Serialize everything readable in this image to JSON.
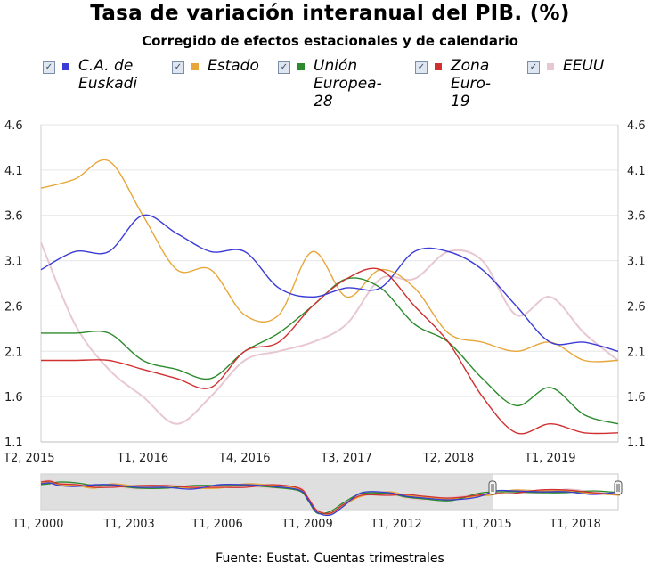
{
  "chart_data": {
    "type": "line",
    "title": "Tasa de variación interanual del PIB. (%)",
    "subtitle": "Corregido de efectos estacionales y de calendario",
    "ylim": [
      1.1,
      4.6
    ],
    "yticks": [
      "4.6",
      "4.1",
      "3.6",
      "3.1",
      "2.6",
      "2.1",
      "1.6",
      "1.1"
    ],
    "ytick_values": [
      4.6,
      4.1,
      3.6,
      3.1,
      2.6,
      2.1,
      1.6,
      1.1
    ],
    "xticks": [
      "T2, 2015",
      "T1, 2016",
      "T4, 2016",
      "T3, 2017",
      "T2, 2018",
      "T1, 2019"
    ],
    "xtick_positions": [
      0,
      3,
      6,
      9,
      12,
      15
    ],
    "x": [
      "T2 2015",
      "T3 2015",
      "T4 2015",
      "T1 2016",
      "T2 2016",
      "T3 2016",
      "T4 2016",
      "T1 2017",
      "T2 2017",
      "T3 2017",
      "T4 2017",
      "T1 2018",
      "T2 2018",
      "T3 2018",
      "T4 2018",
      "T1 2019",
      "T2 2019",
      "T3 2019"
    ],
    "series": [
      {
        "name": "C.A. de Euskadi",
        "color": "#3b3bd6",
        "values": [
          3.0,
          3.2,
          3.2,
          3.6,
          3.4,
          3.2,
          3.2,
          2.8,
          2.7,
          2.8,
          2.8,
          3.2,
          3.2,
          3.0,
          2.6,
          2.2,
          2.2,
          2.1
        ]
      },
      {
        "name": "Estado",
        "color": "#e8a63a",
        "values": [
          3.9,
          4.0,
          4.2,
          3.6,
          3.0,
          3.0,
          2.5,
          2.5,
          3.2,
          2.7,
          3.0,
          2.8,
          2.3,
          2.2,
          2.1,
          2.2,
          2.0,
          2.0
        ]
      },
      {
        "name": "Unión Europea-28",
        "color": "#2b8a2b",
        "values": [
          2.3,
          2.3,
          2.3,
          2.0,
          1.9,
          1.8,
          2.1,
          2.3,
          2.6,
          2.9,
          2.8,
          2.4,
          2.2,
          1.8,
          1.5,
          1.7,
          1.4,
          1.3
        ]
      },
      {
        "name": "Zona Euro-19",
        "color": "#d03030",
        "values": [
          2.0,
          2.0,
          2.0,
          1.9,
          1.8,
          1.7,
          2.1,
          2.2,
          2.6,
          2.9,
          3.0,
          2.6,
          2.2,
          1.6,
          1.2,
          1.3,
          1.2,
          1.2
        ]
      },
      {
        "name": "EEUU",
        "color": "#e8c8d0",
        "values": [
          3.3,
          2.4,
          1.9,
          1.6,
          1.3,
          1.6,
          2.0,
          2.1,
          2.2,
          2.4,
          2.9,
          2.9,
          3.2,
          3.1,
          2.5,
          2.7,
          2.3,
          2.0
        ]
      }
    ],
    "navigator": {
      "xticks": [
        "T1, 2000",
        "T1, 2003",
        "T1, 2006",
        "T1, 2009",
        "T1, 2012",
        "T1, 2015",
        "T1, 2018"
      ],
      "selected_range": [
        "T2, 2015",
        "T3, 2019"
      ]
    },
    "source": "Fuente: Eustat. Cuentas trimestrales"
  },
  "legend": {
    "check_glyph": "✓",
    "items": [
      {
        "lines": [
          "C.A. de",
          "Euskadi"
        ],
        "color": "#3b3bd6"
      },
      {
        "lines": [
          "Estado"
        ],
        "color": "#e8a63a"
      },
      {
        "lines": [
          "Unión",
          "Europea-",
          "28"
        ],
        "color": "#2b8a2b"
      },
      {
        "lines": [
          "Zona",
          "Euro-",
          "19"
        ],
        "color": "#d03030"
      },
      {
        "lines": [
          "EEUU"
        ],
        "color": "#e8c8d0"
      }
    ]
  }
}
